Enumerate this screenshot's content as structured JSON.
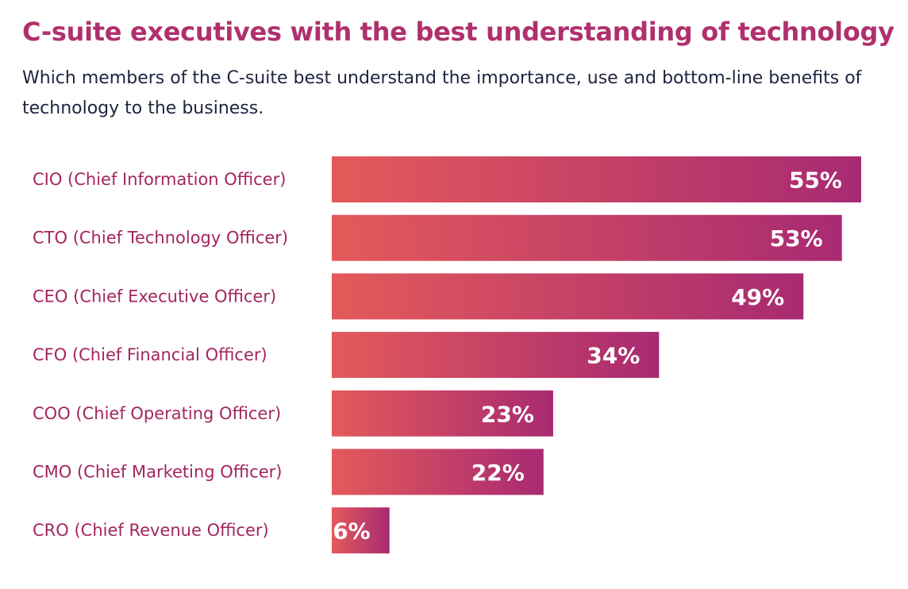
{
  "title": "C-suite executives with the best understanding of technology",
  "subtitle": "Which members of the C-suite best understand the importance, use and bottom-line benefits of technology to the business.",
  "colors": {
    "title": "#b0306e",
    "subtitle": "#1e2440",
    "category_label": "#a3265f",
    "bar_gradient_start": "#e45a5a",
    "bar_gradient_end": "#a82a72",
    "value_label": "#ffffff"
  },
  "chart_data": {
    "type": "bar",
    "orientation": "horizontal",
    "categories": [
      "CIO (Chief Information Officer)",
      "CTO (Chief Technology Officer)",
      "CEO (Chief Executive Officer)",
      "CFO (Chief Financial Officer)",
      "COO (Chief Operating Officer)",
      "CMO (Chief Marketing Officer)",
      "CRO (Chief Revenue Officer)"
    ],
    "values": [
      55,
      53,
      49,
      34,
      23,
      22,
      6
    ],
    "value_labels": [
      "55%",
      "53%",
      "49%",
      "34%",
      "23%",
      "22%",
      "6%"
    ],
    "unit": "%",
    "xlim": [
      0,
      55
    ],
    "grid": false,
    "legend": "none"
  }
}
